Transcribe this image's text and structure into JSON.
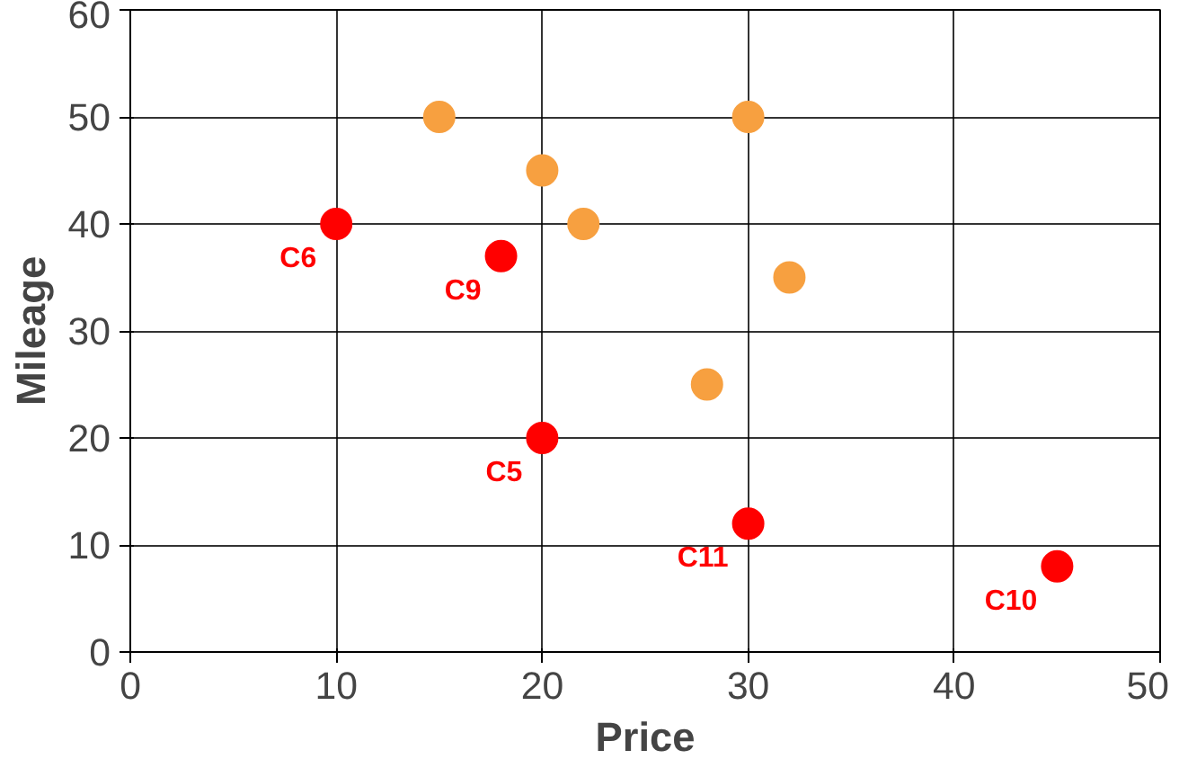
{
  "chart_data": {
    "type": "scatter",
    "xlabel": "Price",
    "ylabel": "Mileage",
    "xlim": [
      0,
      50
    ],
    "ylim": [
      0,
      60
    ],
    "xticks": [
      0,
      10,
      20,
      30,
      40,
      50
    ],
    "yticks": [
      0,
      10,
      20,
      30,
      40,
      50,
      60
    ],
    "grid": true,
    "marker": "circle",
    "series": [
      {
        "color": "#f7a040",
        "x": [
          15,
          20,
          22,
          28,
          30,
          32
        ],
        "values": [
          50,
          45,
          40,
          25,
          50,
          35
        ]
      },
      {
        "color": "#ff0000",
        "x": [
          10,
          18,
          20,
          30,
          45
        ],
        "values": [
          40,
          37,
          20,
          12,
          8
        ]
      }
    ],
    "annotations": [
      {
        "text": "C6",
        "x": 10,
        "y": 40
      },
      {
        "text": "C9",
        "x": 18,
        "y": 37
      },
      {
        "text": "C5",
        "x": 20,
        "y": 20
      },
      {
        "text": "C11",
        "x": 30,
        "y": 12
      },
      {
        "text": "C10",
        "x": 45,
        "y": 8
      }
    ]
  }
}
